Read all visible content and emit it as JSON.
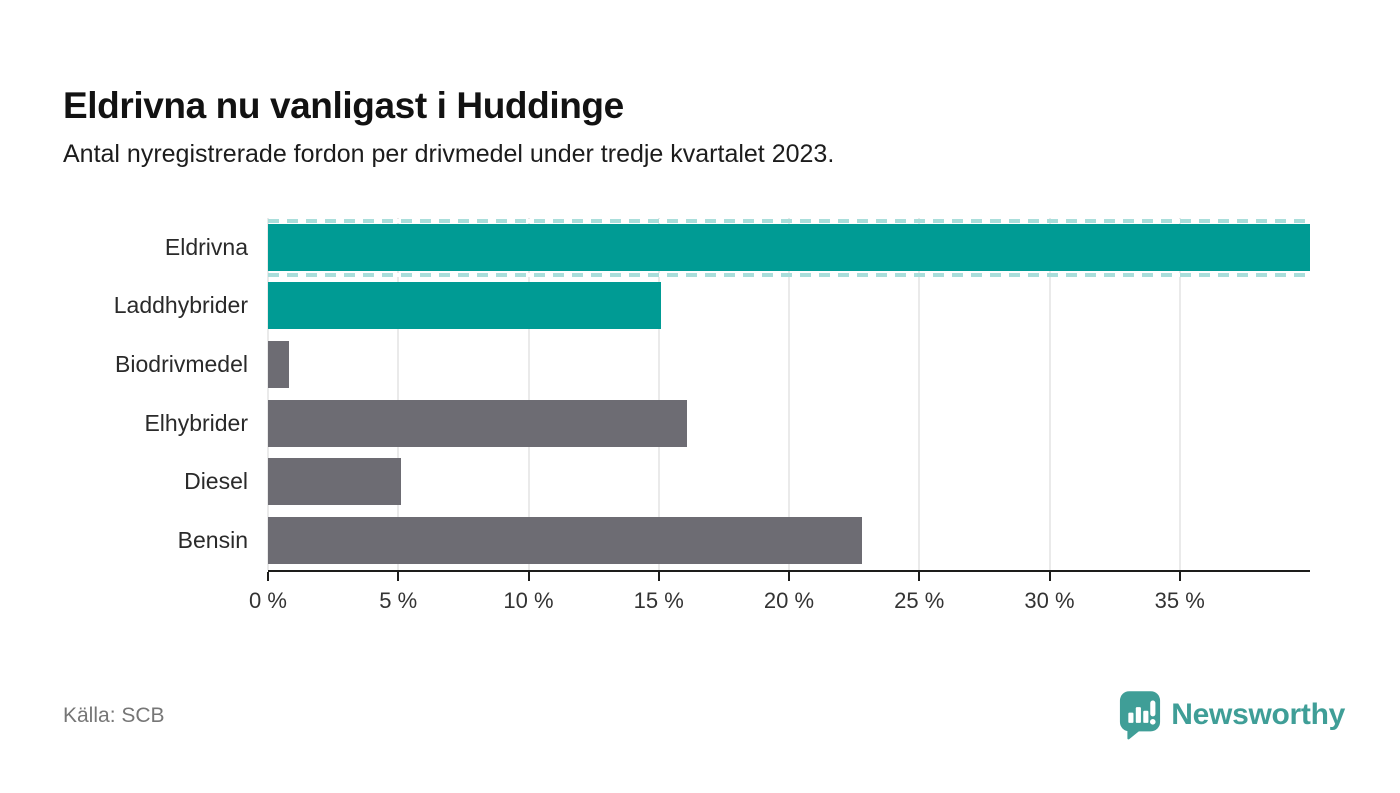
{
  "header": {
    "title": "Eldrivna nu vanligast i Huddinge",
    "subtitle": "Antal nyregistrerade fordon per drivmedel under tredje kvartalet 2023."
  },
  "chart_data": {
    "type": "bar",
    "orientation": "horizontal",
    "title": "Eldrivna nu vanligast i Huddinge",
    "subtitle": "Antal nyregistrerade fordon per drivmedel under tredje kvartalet 2023.",
    "categories": [
      "Eldrivna",
      "Laddhybrider",
      "Biodrivmedel",
      "Elhybrider",
      "Diesel",
      "Bensin"
    ],
    "values": [
      40,
      15.1,
      0.8,
      16.1,
      5.1,
      22.8
    ],
    "unit": "%",
    "truncated_bars": [
      "Eldrivna"
    ],
    "bar_color_keys": [
      "electric",
      "electric",
      "other",
      "other",
      "other",
      "other"
    ],
    "series_colors": {
      "electric": "#009b94",
      "other": "#6d6c73"
    },
    "xlim": [
      0,
      40
    ],
    "x_ticks": [
      0,
      5,
      10,
      15,
      20,
      25,
      30,
      35
    ],
    "x_tick_labels": [
      "0 %",
      "5 %",
      "10 %",
      "15 %",
      "20 %",
      "25 %",
      "30 %",
      "35 %"
    ],
    "grid": true,
    "legend_position": "none",
    "xlabel": "",
    "ylabel": ""
  },
  "footer": {
    "source": "Källa: SCB",
    "brand_name": "Newsworthy"
  },
  "colors": {
    "accent_teal": "#009b94",
    "bar_gray": "#6d6c73",
    "truncation_dash": "#aadedb",
    "gridline": "#eaeaea",
    "axis_line": "#1d1d1b",
    "logo_teal": "#3f9e97",
    "source_text": "#767676"
  }
}
